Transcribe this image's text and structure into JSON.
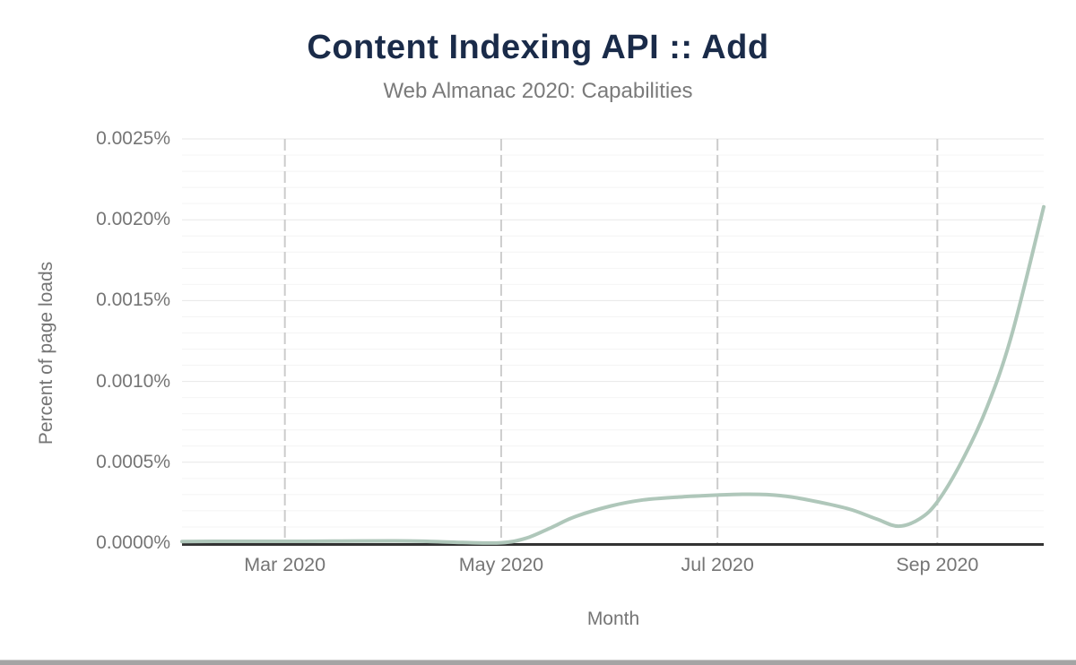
{
  "page": {
    "title": "Content Indexing API :: Add",
    "subtitle": "Web Almanac 2020: Capabilities"
  },
  "colors": {
    "title_text": "#1a2b49",
    "subtitle_text": "#7a7a7a",
    "axis_text": "#757575",
    "series_line": "#afc7ba",
    "axis_line": "#333333",
    "grid_minor": "#f4f4f4",
    "grid_major": "#e7e7e7",
    "month_gridline_dashed": "#cccccc",
    "scrollbar": "#a4a4a4"
  },
  "chart_data": {
    "type": "line",
    "title": "Content Indexing API :: Add",
    "subtitle": "Web Almanac 2020: Capabilities",
    "xlabel": "Month",
    "ylabel": "Percent of page loads",
    "x_range": [
      "2020-02-01",
      "2020-10-01"
    ],
    "ylim_percent": [
      0,
      0.0025
    ],
    "y_tick_step_percent": 0.0005,
    "y_minor_grid_step_percent": 0.0001,
    "grid": "light horizontal minor+major gridlines; dashed vertical gridlines at labeled months; legend: none",
    "x_ticks": [
      {
        "date": "2020-03-01",
        "label": "Mar 2020"
      },
      {
        "date": "2020-05-01",
        "label": "May 2020"
      },
      {
        "date": "2020-07-01",
        "label": "Jul 2020"
      },
      {
        "date": "2020-09-01",
        "label": "Sep 2020"
      }
    ],
    "y_ticks": [
      {
        "value": 0.0,
        "label": "0.0000%"
      },
      {
        "value": 0.0005,
        "label": "0.0005%"
      },
      {
        "value": 0.001,
        "label": "0.0010%"
      },
      {
        "value": 0.0015,
        "label": "0.0015%"
      },
      {
        "value": 0.002,
        "label": "0.0020%"
      },
      {
        "value": 0.0025,
        "label": "0.0025%"
      }
    ],
    "series": [
      {
        "name": "Content Indexing API :: Add",
        "x": [
          "2020-02-01",
          "2020-02-15",
          "2020-03-01",
          "2020-03-15",
          "2020-04-01",
          "2020-04-10",
          "2020-04-20",
          "2020-05-01",
          "2020-05-08",
          "2020-05-15",
          "2020-05-22",
          "2020-06-01",
          "2020-06-10",
          "2020-06-20",
          "2020-07-01",
          "2020-07-08",
          "2020-07-15",
          "2020-07-22",
          "2020-08-01",
          "2020-08-08",
          "2020-08-15",
          "2020-08-21",
          "2020-08-27",
          "2020-09-01",
          "2020-09-08",
          "2020-09-15",
          "2020-09-22",
          "2020-10-01"
        ],
        "y_percent": [
          1e-05,
          1.1e-05,
          1.1e-05,
          1.2e-05,
          1.4e-05,
          1.1e-05,
          4e-06,
          2e-06,
          3e-05,
          9.5e-05,
          0.000165,
          0.00023,
          0.000267,
          0.000285,
          0.000297,
          0.000302,
          0.0003,
          0.000285,
          0.000243,
          0.000205,
          0.000148,
          0.000105,
          0.00015,
          0.000255,
          0.00051,
          0.00084,
          0.00129,
          0.00208
        ]
      }
    ]
  }
}
